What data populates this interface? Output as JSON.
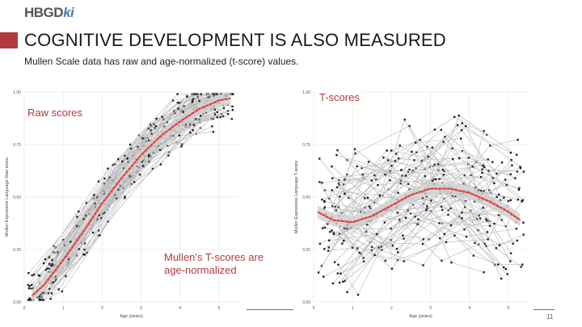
{
  "header": {
    "logo_main": "HBGD",
    "logo_suffix": "ki",
    "title": "COGNITIVE DEVELOPMENT IS ALSO MEASURED",
    "subtitle": "Mullen Scale data has raw and age-normalized (t-score) values."
  },
  "callouts": {
    "raw": "Raw scores",
    "tscores": "T-scores",
    "note": "Mullen’s T-scores are age-normalized"
  },
  "page_number": "11",
  "colors": {
    "accent": "#b03a3e",
    "fit_line": "#e0302a",
    "data_line": "#bdbdbd",
    "ribbon": "#cfcfcf",
    "rule": "#4a78b5"
  },
  "chart_data": [
    {
      "type": "line",
      "xlabel": "Age (years)",
      "ylabel": "Mullen Expressive Language Raw score",
      "xlim": [
        0,
        5.5
      ],
      "ylim": [
        0,
        1
      ],
      "x_ticks": [
        {
          "value": 0,
          "label": "0"
        },
        {
          "value": 1,
          "label": "1"
        },
        {
          "value": 2,
          "label": "2"
        },
        {
          "value": 3,
          "label": "3"
        },
        {
          "value": 4,
          "label": "4"
        },
        {
          "value": 5,
          "label": "5"
        }
      ],
      "y_ticks": [
        {
          "value": 0,
          "label": "0.00"
        },
        {
          "value": 0.25,
          "label": "0.25"
        },
        {
          "value": 0.5,
          "label": "0.50"
        },
        {
          "value": 0.75,
          "label": "0.75"
        },
        {
          "value": 1,
          "label": "1.00"
        }
      ],
      "grid": true,
      "series": [
        {
          "x": [
            0.2,
            0.5,
            1,
            1.5,
            2,
            2.5,
            3,
            3.5,
            4,
            4.5,
            5,
            5.3
          ],
          "y": [
            0.03,
            0.08,
            0.2,
            0.33,
            0.47,
            0.59,
            0.7,
            0.79,
            0.86,
            0.92,
            0.96,
            0.97
          ]
        }
      ]
    },
    {
      "type": "line",
      "xlabel": "Age (years)",
      "ylabel": "Mullen Expressive Language T-score",
      "xlim": [
        0,
        5.5
      ],
      "ylim": [
        0,
        1
      ],
      "x_ticks": [
        {
          "value": 0,
          "label": "0"
        },
        {
          "value": 1,
          "label": "1"
        },
        {
          "value": 2,
          "label": "2"
        },
        {
          "value": 3,
          "label": "3"
        },
        {
          "value": 4,
          "label": "4"
        },
        {
          "value": 5,
          "label": "5"
        }
      ],
      "y_ticks": [
        {
          "value": 0,
          "label": "0.00"
        },
        {
          "value": 0.25,
          "label": "0.25"
        },
        {
          "value": 0.5,
          "label": "0.50"
        },
        {
          "value": 0.75,
          "label": "0.75"
        },
        {
          "value": 1,
          "label": "1.00"
        }
      ],
      "grid": true,
      "series": [
        {
          "x": [
            0.1,
            0.5,
            1,
            1.5,
            2,
            2.5,
            3,
            3.5,
            4,
            4.5,
            5,
            5.3
          ],
          "y": [
            0.43,
            0.39,
            0.38,
            0.41,
            0.46,
            0.51,
            0.54,
            0.54,
            0.52,
            0.48,
            0.43,
            0.39
          ]
        }
      ]
    }
  ]
}
